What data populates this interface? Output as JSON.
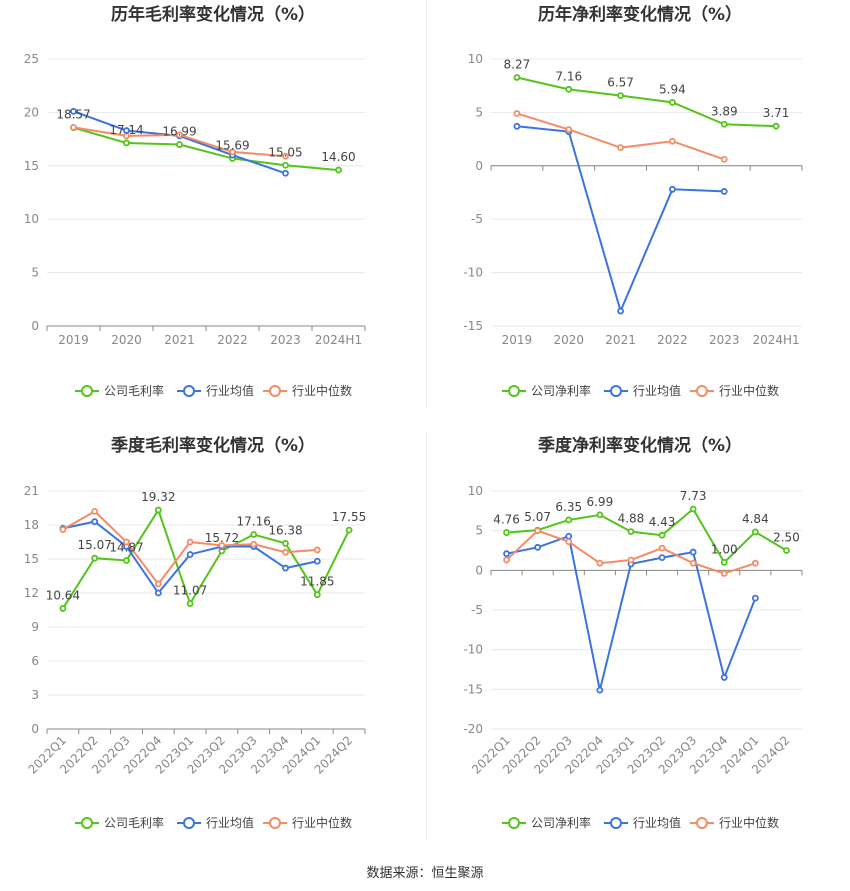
{
  "colors": {
    "company": "#52c41a",
    "industry_avg": "#3b73e0",
    "industry_median": "#f58b64",
    "grid": "#e8e8e8",
    "axis": "#888888",
    "tick_text": "#888888",
    "label_text": "#444444",
    "title_text": "#333333"
  },
  "source_text": "数据来源：恒生聚源",
  "chart_data": [
    {
      "type": "line",
      "title": "历年毛利率变化情况（%）",
      "categories": [
        "2019",
        "2020",
        "2021",
        "2022",
        "2023",
        "2024H1"
      ],
      "ylim": [
        0,
        25
      ],
      "yticks": [
        0,
        5,
        10,
        15,
        20,
        25
      ],
      "legend": "bottom",
      "series": [
        {
          "name": "公司毛利率",
          "values": [
            18.57,
            17.14,
            16.99,
            15.69,
            15.05,
            14.6
          ],
          "labels": [
            "18.57",
            "17.14",
            "16.99",
            "15.69",
            "15.05",
            "14.60"
          ]
        },
        {
          "name": "行业均值",
          "values": [
            20.1,
            18.3,
            17.8,
            16.0,
            14.3,
            null
          ]
        },
        {
          "name": "行业中位数",
          "values": [
            18.6,
            17.8,
            17.9,
            16.3,
            15.9,
            null
          ]
        }
      ]
    },
    {
      "type": "line",
      "title": "历年净利率变化情况（%）",
      "categories": [
        "2019",
        "2020",
        "2021",
        "2022",
        "2023",
        "2024H1"
      ],
      "ylim": [
        -15,
        10
      ],
      "yticks": [
        -15,
        -10,
        -5,
        0,
        5,
        10
      ],
      "legend": "bottom",
      "series": [
        {
          "name": "公司净利率",
          "values": [
            8.27,
            7.16,
            6.57,
            5.94,
            3.89,
            3.71
          ],
          "labels": [
            "8.27",
            "7.16",
            "6.57",
            "5.94",
            "3.89",
            "3.71"
          ]
        },
        {
          "name": "行业均值",
          "values": [
            3.7,
            3.2,
            -13.6,
            -2.2,
            -2.4,
            null
          ]
        },
        {
          "name": "行业中位数",
          "values": [
            4.9,
            3.4,
            1.7,
            2.3,
            0.6,
            null
          ]
        }
      ]
    },
    {
      "type": "line",
      "title": "季度毛利率变化情况（%）",
      "categories": [
        "2022Q1",
        "2022Q2",
        "2022Q3",
        "2022Q4",
        "2023Q1",
        "2023Q2",
        "2023Q3",
        "2023Q4",
        "2024Q1",
        "2024Q2"
      ],
      "ylim": [
        0,
        21
      ],
      "yticks": [
        0,
        3,
        6,
        9,
        12,
        15,
        18,
        21
      ],
      "legend": "bottom",
      "series": [
        {
          "name": "公司毛利率",
          "values": [
            10.64,
            15.07,
            14.87,
            19.32,
            11.07,
            15.72,
            17.16,
            16.38,
            11.85,
            17.55
          ],
          "labels": [
            "10.64",
            "15.07",
            "14.87",
            "19.32",
            "11.07",
            "15.72",
            "17.16",
            "16.38",
            "11.85",
            "17.55"
          ]
        },
        {
          "name": "行业均值",
          "values": [
            17.7,
            18.3,
            16.1,
            12.0,
            15.4,
            16.1,
            16.1,
            14.2,
            14.8,
            null
          ]
        },
        {
          "name": "行业中位数",
          "values": [
            17.6,
            19.2,
            16.5,
            12.8,
            16.5,
            16.2,
            16.3,
            15.6,
            15.8,
            null
          ]
        }
      ]
    },
    {
      "type": "line",
      "title": "季度净利率变化情况（%）",
      "categories": [
        "2022Q1",
        "2022Q2",
        "2022Q3",
        "2022Q4",
        "2023Q1",
        "2023Q2",
        "2023Q3",
        "2023Q4",
        "2024Q1",
        "2024Q2"
      ],
      "ylim": [
        -20,
        10
      ],
      "yticks": [
        -20,
        -15,
        -10,
        -5,
        0,
        5,
        10
      ],
      "legend": "bottom",
      "series": [
        {
          "name": "公司净利率",
          "values": [
            4.76,
            5.07,
            6.35,
            6.99,
            4.88,
            4.43,
            7.73,
            1.0,
            4.84,
            2.5
          ],
          "labels": [
            "4.76",
            "5.07",
            "6.35",
            "6.99",
            "4.88",
            "4.43",
            "7.73",
            "1.00",
            "4.84",
            "2.50"
          ]
        },
        {
          "name": "行业均值",
          "values": [
            2.1,
            2.9,
            4.3,
            -15.1,
            0.8,
            1.6,
            2.3,
            -13.5,
            -3.5,
            null
          ]
        },
        {
          "name": "行业中位数",
          "values": [
            1.3,
            5.0,
            3.6,
            0.9,
            1.3,
            2.8,
            0.9,
            -0.4,
            0.9,
            null
          ]
        }
      ]
    }
  ]
}
